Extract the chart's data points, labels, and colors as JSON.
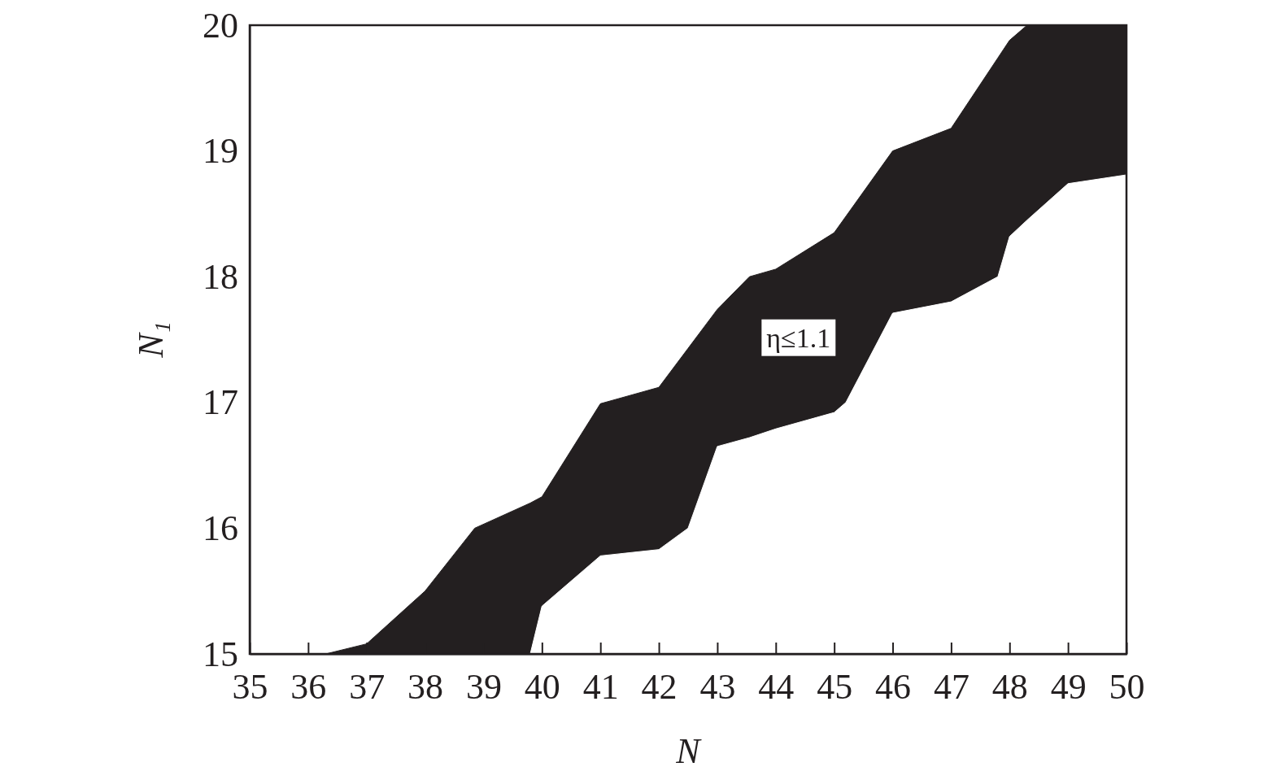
{
  "chart_data": {
    "type": "area",
    "xlabel": "N",
    "ylabel": "N₁",
    "x": [
      36.3,
      37,
      38,
      38.85,
      39.8,
      40,
      41,
      42,
      42.5,
      43,
      43.55,
      44,
      45,
      45.2,
      46,
      47,
      47.8,
      48,
      48.3,
      49,
      50
    ],
    "series": [
      {
        "color": "#231f20",
        "values": [
          15,
          15.08,
          15.5,
          16,
          16.2,
          16.25,
          16.99,
          17.12,
          17.43,
          17.74,
          18,
          18.06,
          18.35,
          18.48,
          19,
          19.18,
          19.74,
          19.88,
          20,
          20,
          20
        ]
      },
      {
        "color": "#ffffff",
        "values": [
          15,
          15,
          15,
          15,
          15,
          15.38,
          15.78,
          15.83,
          16,
          16.65,
          16.72,
          16.79,
          16.92,
          17,
          17.71,
          17.8,
          18,
          18.32,
          18.45,
          18.74,
          18.81
        ]
      }
    ],
    "annotations": [
      "η≤1.1"
    ],
    "xlim": [
      35,
      50
    ],
    "ylim": [
      15,
      20
    ],
    "xticks": [
      35,
      36,
      37,
      38,
      39,
      40,
      41,
      42,
      43,
      44,
      45,
      46,
      47,
      48,
      49,
      50
    ],
    "yticks": [
      15,
      16,
      17,
      18,
      19,
      20
    ]
  }
}
